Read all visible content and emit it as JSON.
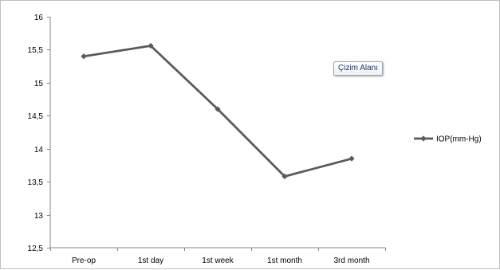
{
  "chart_data": {
    "type": "line",
    "categories": [
      "Pre-op",
      "1st day",
      "1st week",
      "1st month",
      "3rd month"
    ],
    "series": [
      {
        "name": "IOP(mm-Hg)",
        "values": [
          15.4,
          15.56,
          14.6,
          13.58,
          13.85
        ],
        "color": "#5a5a5a"
      }
    ],
    "ylim": [
      12.5,
      16
    ],
    "yticks": [
      12.5,
      13,
      13.5,
      14,
      14.5,
      15,
      15.5,
      16
    ],
    "ytick_labels": [
      "12,5",
      "13",
      "13,5",
      "14",
      "14,5",
      "15",
      "15,5",
      "16"
    ],
    "grid": false,
    "legend": "right",
    "title": "",
    "xlabel": "",
    "ylabel": ""
  },
  "tooltip": {
    "text": "Çizim Alanı"
  }
}
